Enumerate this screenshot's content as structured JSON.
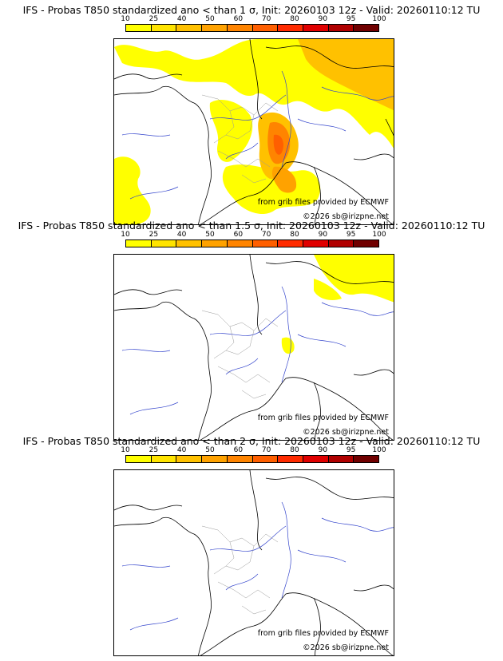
{
  "legend": {
    "ticks": [
      "10",
      "25",
      "40",
      "50",
      "60",
      "70",
      "80",
      "90",
      "95",
      "100"
    ],
    "colors": [
      "#ffff00",
      "#ffe400",
      "#ffc100",
      "#ffa200",
      "#ff8400",
      "#ff5f00",
      "#ff2b00",
      "#e00000",
      "#b00000",
      "#700000"
    ]
  },
  "panels": [
    {
      "title": "IFS - Probas T850  standardized ano < than 1 σ, Init: 20260103 12z - Valid: 20260110:12 TU",
      "credit_source": "from grib files provided by ECMWF",
      "credit_copyright": "©2026 sb@irizpne.net"
    },
    {
      "title": "IFS - Probas T850  standardized ano < than 1.5 σ, Init: 20260103 12z - Valid: 20260110:12 TU",
      "credit_source": "from grib files provided by ECMWF",
      "credit_copyright": "©2026 sb@irizpne.net"
    },
    {
      "title": "IFS - Probas T850  standardized ano < than 2 σ, Init: 20260103 12z - Valid: 20260110:12 TU",
      "credit_source": "from grib files provided by ECMWF",
      "credit_copyright": "©2026 sb@irizpne.net"
    }
  ]
}
